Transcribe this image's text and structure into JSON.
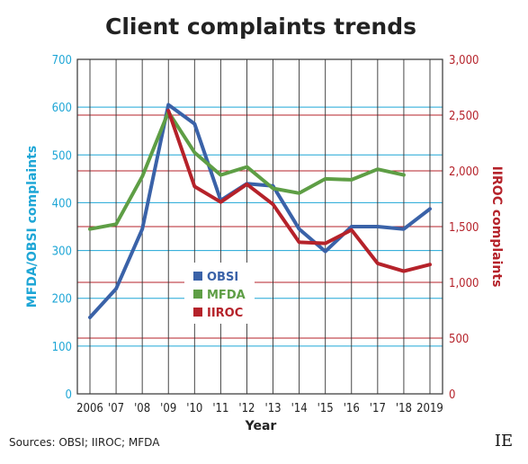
{
  "chart_data": {
    "type": "line",
    "title": "Client complaints trends",
    "xlabel": "Year",
    "ylabel_left": "MFDA/OBSI complaints",
    "ylabel_right": "IIROC complaints",
    "x": [
      "2006",
      "'07",
      "'08",
      "'09",
      "'10",
      "'11",
      "'12",
      "'13",
      "'14",
      "'15",
      "'16",
      "'17",
      "'18",
      "2019"
    ],
    "y_left_range": [
      0,
      700
    ],
    "y_left_ticks": [
      "0",
      "100",
      "200",
      "300",
      "400",
      "500",
      "600",
      "700"
    ],
    "y_right_range": [
      0,
      3000
    ],
    "y_right_ticks": [
      "0",
      "500",
      "1,000",
      "1,500",
      "2,000",
      "2,500",
      "3,000"
    ],
    "gridlines": "horizontal, colored per axis",
    "legend": "center",
    "series": [
      {
        "name": "OBSI",
        "axis": "left",
        "color": "#3a62a8",
        "values": [
          160,
          220,
          345,
          605,
          565,
          405,
          440,
          435,
          345,
          298,
          350,
          350,
          345,
          387
        ]
      },
      {
        "name": "MFDA",
        "axis": "left",
        "color": "#5e9e45",
        "values": [
          345,
          355,
          455,
          590,
          505,
          458,
          475,
          430,
          420,
          450,
          448,
          470,
          458,
          null
        ]
      },
      {
        "name": "IIROC",
        "axis": "right",
        "color": "#b5222a",
        "values": [
          null,
          null,
          null,
          2540,
          1860,
          1720,
          1880,
          1700,
          1360,
          1350,
          1470,
          1170,
          1100,
          1160
        ]
      }
    ]
  },
  "source": "Sources: OBSI; IIROC; MFDA",
  "logo": "IE",
  "colors": {
    "left_axis": "#1ea6d6",
    "right_axis": "#b5222a"
  }
}
